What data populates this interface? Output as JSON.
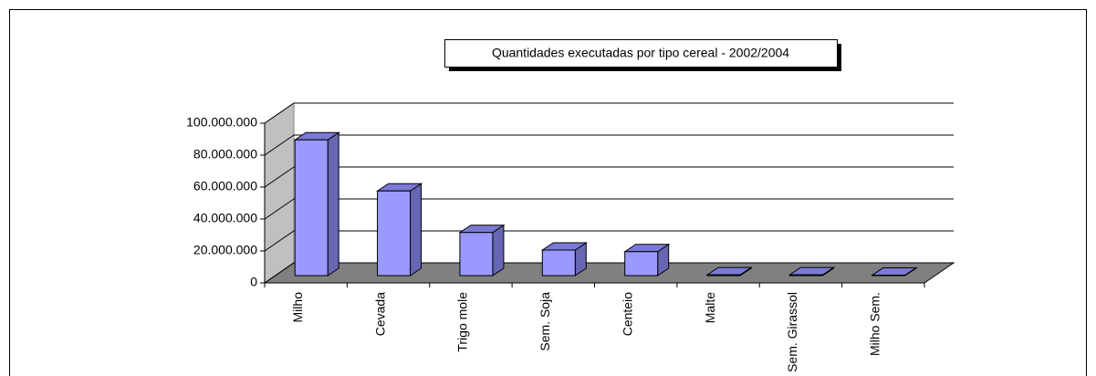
{
  "chart_data": {
    "type": "bar3d",
    "title": "Quantidades executadas por tipo cereal - 2002/2004",
    "categories": [
      "Milho",
      "Cevada",
      "Trigo mole",
      "Sem. Soja",
      "Centeio",
      "Malte",
      "Sem. Girassol",
      "Milho Sem."
    ],
    "values": [
      85000000,
      53000000,
      27000000,
      16000000,
      15000000,
      500000,
      500000,
      300000
    ],
    "color": "#9999ff",
    "ylim": [
      0,
      100000000
    ],
    "yticks": [
      0,
      {
        "value": 20000000,
        "label": "20.000.000"
      },
      {
        "value": 40000000,
        "label": "40.000.000"
      },
      {
        "value": 60000000,
        "label": "60.000.000"
      },
      {
        "value": 80000000,
        "label": "80.000.000"
      },
      {
        "value": 100000000,
        "label": "100.000.000"
      }
    ],
    "grid": true
  }
}
